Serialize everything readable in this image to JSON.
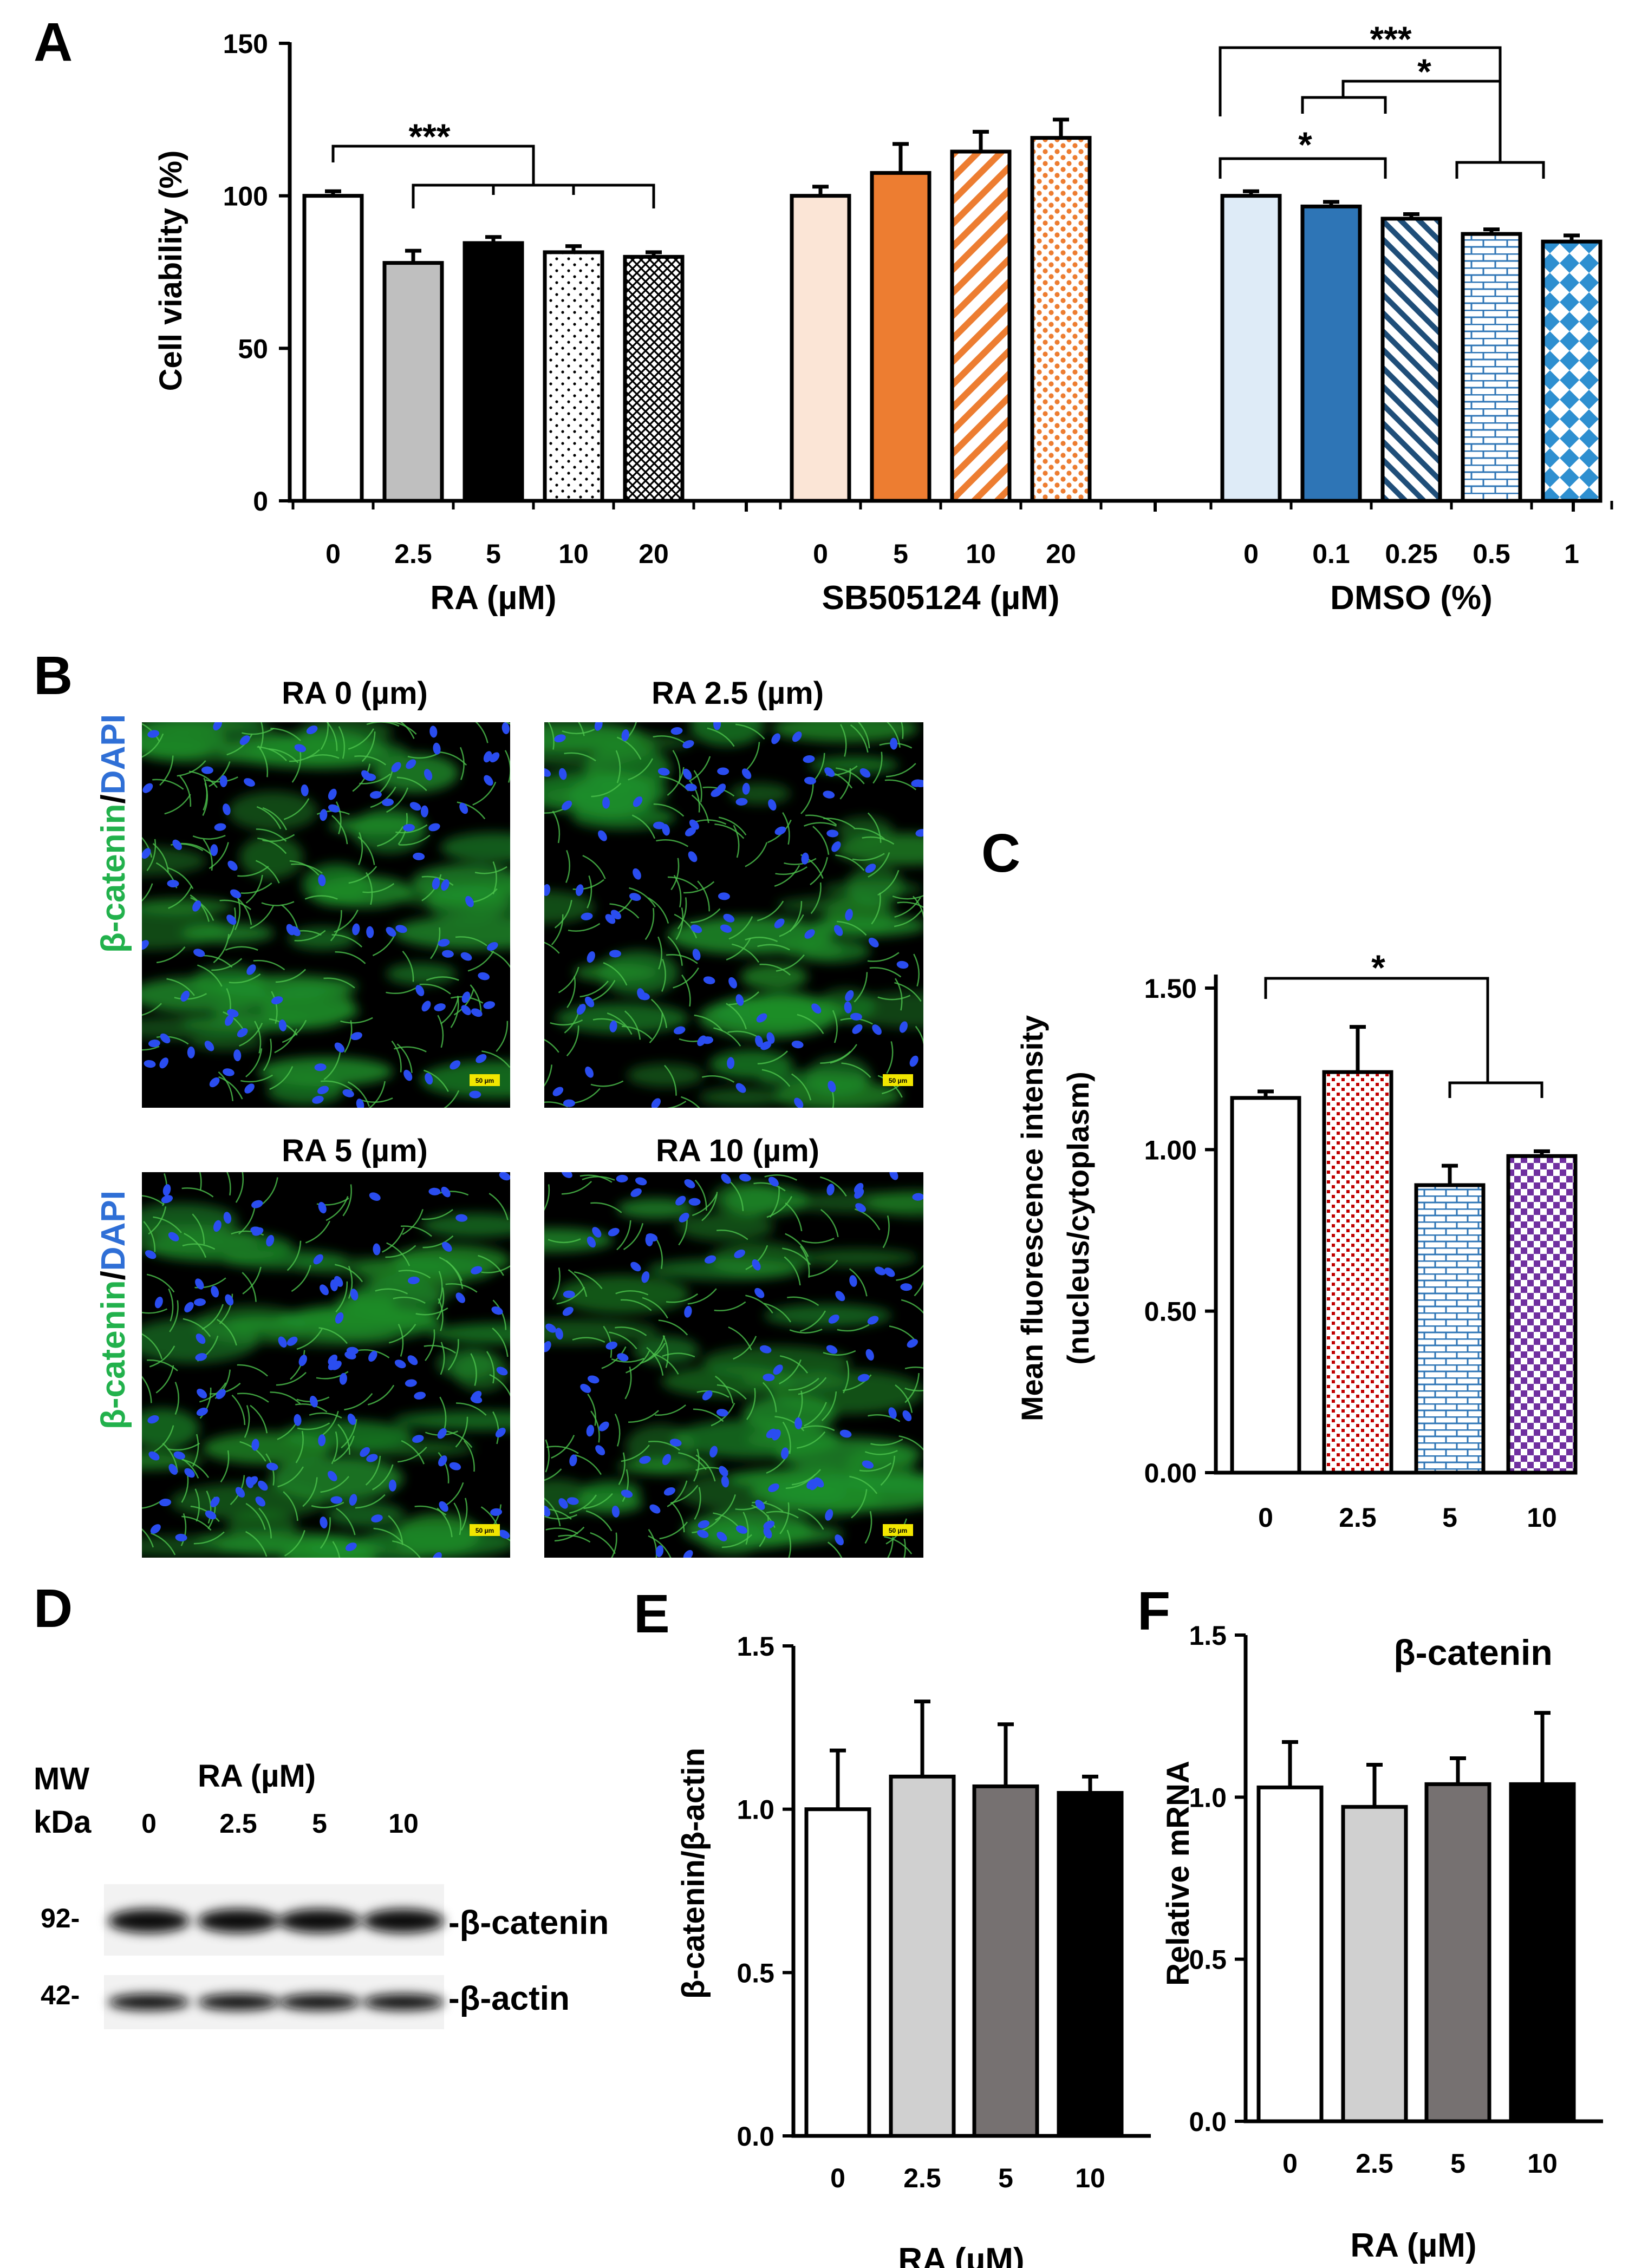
{
  "panel_letters": {
    "A": "A",
    "B": "B",
    "C": "C",
    "D": "D",
    "E": "E",
    "F": "F"
  },
  "colors": {
    "black": "#000000",
    "white": "#ffffff",
    "grey": "#bfbfbf",
    "peach": "#fbe5d6",
    "orange": "#ed7d31",
    "lightblue": "#deebf7",
    "blue": "#2e75b6",
    "blue2": "#1f5f9e",
    "red": "#c00000",
    "purple": "#7030a0",
    "lightgrey": "#d0d0d0",
    "darkgrey": "#767171",
    "midgrey": "#7f7f7f",
    "green_label": "#22b14c",
    "blue_label": "#2f6fd6",
    "scale_bar": "#f2e600"
  },
  "chart_data": [
    {
      "id": "A",
      "type": "bar",
      "title": "",
      "ylabel": "Cell viability (%)",
      "ylim": [
        0,
        150
      ],
      "yticks": [
        0,
        50,
        100,
        150
      ],
      "groups": [
        {
          "label": "RA (µM)",
          "categories": [
            "0",
            "2.5",
            "5",
            "10",
            "20"
          ],
          "values": [
            100,
            78,
            84.5,
            81.5,
            80
          ],
          "errors": [
            1.5,
            4,
            2,
            2,
            1.5
          ],
          "patterns": [
            "white",
            "grey",
            "black",
            "dots",
            "crosshatch"
          ]
        },
        {
          "label": "SB505124 (µM)",
          "categories": [
            "0",
            "5",
            "10",
            "20"
          ],
          "values": [
            100,
            107.5,
            114.5,
            119
          ],
          "errors": [
            3,
            9.5,
            6.5,
            6
          ],
          "patterns": [
            "peach",
            "orange",
            "diag_orange",
            "dots_orange"
          ]
        },
        {
          "label": "DMSO (%)",
          "categories": [
            "0",
            "0.1",
            "0.25",
            "0.5",
            "1"
          ],
          "values": [
            100,
            96.5,
            92.5,
            87.5,
            85
          ],
          "errors": [
            1.5,
            1.5,
            1.5,
            1.5,
            2
          ],
          "patterns": [
            "lightblue",
            "blue",
            "diag_blue",
            "brick_blue",
            "diamond_blue"
          ]
        }
      ],
      "annotations": [
        "***",
        "***",
        "*",
        "*"
      ]
    },
    {
      "id": "C",
      "type": "bar",
      "ylabel_line1": "Mean fluorescence intensity",
      "ylabel_line2": "(nucleus/cytoplasm)",
      "ylim": [
        0,
        1.5
      ],
      "yticks": [
        "0.00",
        "0.50",
        "1.00",
        "1.50"
      ],
      "categories": [
        "0",
        "2.5",
        "5",
        "10"
      ],
      "values": [
        1.16,
        1.24,
        0.89,
        0.98
      ],
      "errors": [
        0.02,
        0.14,
        0.06,
        0.015
      ],
      "annotations": [
        "*"
      ]
    },
    {
      "id": "E",
      "type": "bar",
      "ylabel": "β-catenin/β-actin",
      "xlabel": "RA (µM)",
      "ylim": [
        0,
        1.5
      ],
      "yticks": [
        "0.0",
        "0.5",
        "1.0",
        "1.5"
      ],
      "categories": [
        "0",
        "2.5",
        "5",
        "10"
      ],
      "values": [
        1.0,
        1.1,
        1.07,
        1.05
      ],
      "errors": [
        0.18,
        0.23,
        0.19,
        0.05
      ]
    },
    {
      "id": "F",
      "type": "bar",
      "title": "β-catenin",
      "ylabel": "Relative mRNA",
      "xlabel": "RA (µM)",
      "ylim": [
        0,
        1.5
      ],
      "yticks": [
        "0.0",
        "0.5",
        "1.0",
        "1.5"
      ],
      "categories": [
        "0",
        "2.5",
        "5",
        "10"
      ],
      "values": [
        1.03,
        0.97,
        1.04,
        1.04
      ],
      "errors": [
        0.14,
        0.13,
        0.08,
        0.22
      ]
    }
  ],
  "panel_b": {
    "titles": [
      "RA 0 (µm)",
      "RA 2.5 (µm)",
      "RA 5 (µm)",
      "RA 10 (µm)"
    ],
    "label_green": "β-catenin",
    "label_sep": "/",
    "label_blue": "DAPI",
    "scale_bar": "50 µm"
  },
  "panel_d": {
    "mw_label": "MW",
    "kda_label": "kDa",
    "treatment_label": "RA (µM)",
    "lanes": [
      "0",
      "2.5",
      "5",
      "10"
    ],
    "bands": [
      {
        "mw": "92-",
        "label": "-β-catenin"
      },
      {
        "mw": "42-",
        "label": "-β-actin"
      }
    ]
  }
}
